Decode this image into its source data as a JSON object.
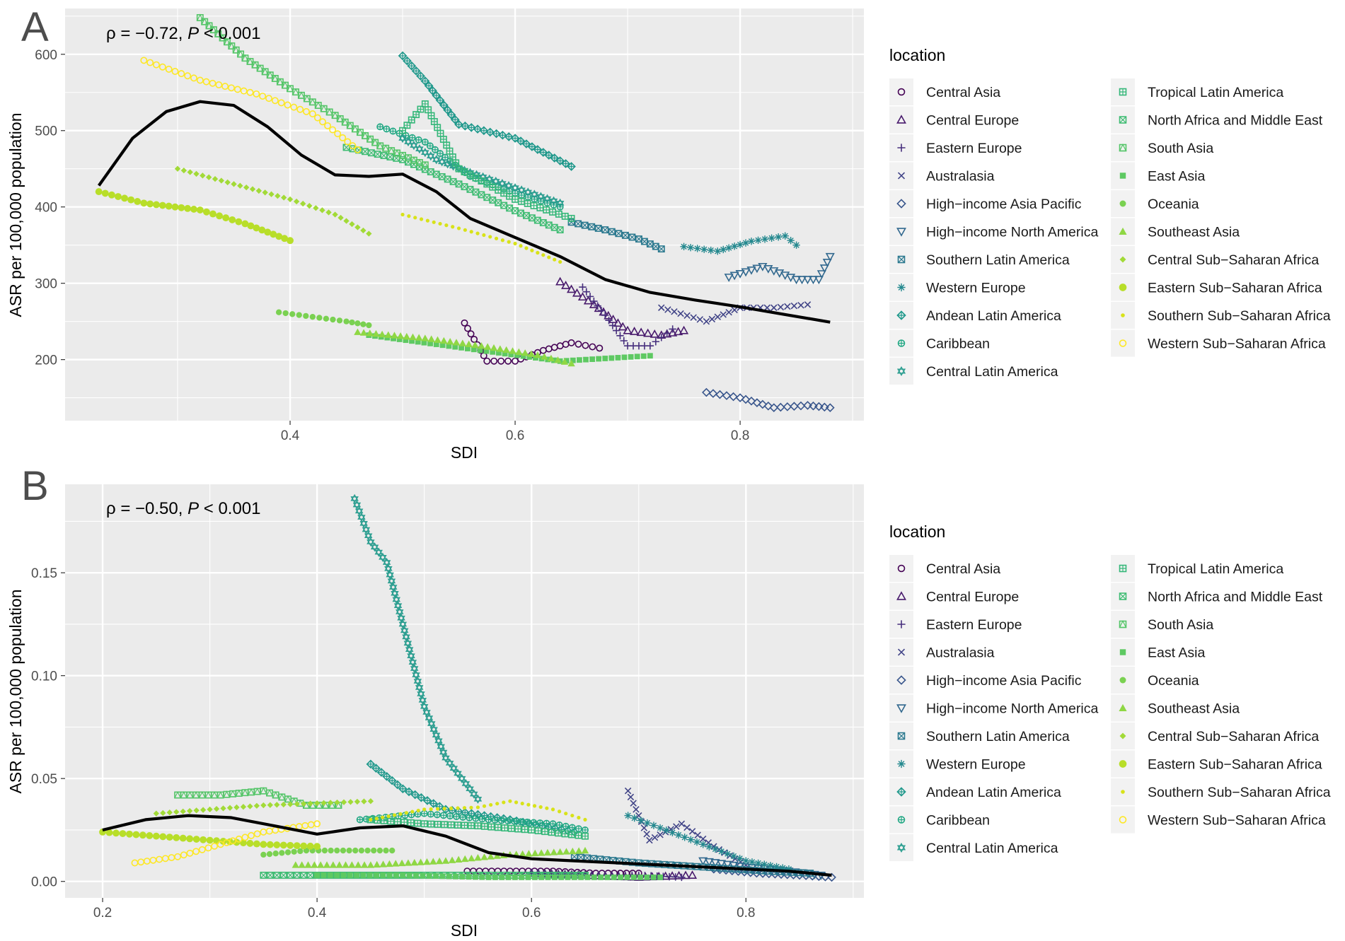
{
  "colors": {
    "panel_background": "#ebebeb",
    "grid": "#ffffff",
    "fit_line": "#000000",
    "series": [
      "#440154",
      "#482173",
      "#433e85",
      "#38598c",
      "#2d708e",
      "#25858e",
      "#1e9b8a",
      "#2ab07f",
      "#51c56a",
      "#86d549",
      "#c2df23",
      "#fde725",
      "#26828e",
      "#1f9e89",
      "#35b779",
      "#6ece58",
      "#b5de2b",
      "#e5e419",
      "#fde725"
    ]
  },
  "legend": {
    "title": "location",
    "columns": [
      [
        {
          "label": "Central Asia",
          "shape": "circle-open",
          "color": "#440154"
        },
        {
          "label": "Central Europe",
          "shape": "triangle-open",
          "color": "#481a6c"
        },
        {
          "label": "Eastern Europe",
          "shape": "plus",
          "color": "#472f7d"
        },
        {
          "label": "Australasia",
          "shape": "cross",
          "color": "#414487"
        },
        {
          "label": "High−income Asia Pacific",
          "shape": "diamond-open",
          "color": "#39568c"
        },
        {
          "label": "High−income North America",
          "shape": "triangle-down-open",
          "color": "#31688e"
        },
        {
          "label": "Southern Latin America",
          "shape": "square-cross",
          "color": "#2a788e"
        },
        {
          "label": "Western Europe",
          "shape": "asterisk",
          "color": "#23888e"
        },
        {
          "label": "Andean Latin America",
          "shape": "diamond-plus",
          "color": "#1f988b"
        },
        {
          "label": "Caribbean",
          "shape": "circle-plus",
          "color": "#22a884"
        },
        {
          "label": "Central Latin America",
          "shape": "star-of-david",
          "color": "#2a9d8f"
        }
      ],
      [
        {
          "label": "Tropical Latin America",
          "shape": "square-plus",
          "color": "#35b779"
        },
        {
          "label": "North Africa and Middle East",
          "shape": "square-x",
          "color": "#3fbc73"
        },
        {
          "label": "South Asia",
          "shape": "square-triangle",
          "color": "#54c568"
        },
        {
          "label": "East Asia",
          "shape": "square",
          "color": "#5ec962"
        },
        {
          "label": "Oceania",
          "shape": "circle",
          "color": "#7ad151"
        },
        {
          "label": "Southeast Asia",
          "shape": "triangle",
          "color": "#8fd744"
        },
        {
          "label": "Central Sub−Saharan Africa",
          "shape": "diamond",
          "color": "#a2da37"
        },
        {
          "label": "Eastern Sub−Saharan Africa",
          "shape": "big-circle",
          "color": "#b8de29"
        },
        {
          "label": "Southern Sub−Saharan Africa",
          "shape": "small-circle",
          "color": "#d8e219"
        },
        {
          "label": "Western Sub−Saharan Africa",
          "shape": "circle-open",
          "color": "#fde725"
        }
      ]
    ]
  },
  "chart_data": [
    {
      "type": "scatter",
      "panel_label": "A",
      "annotation": {
        "rho_text": "ρ = −0.72, ",
        "p_symbol": "P",
        "p_text": " < 0.001"
      },
      "xlabel": "SDI",
      "ylabel": "ASR per 100,000 population",
      "xlim": [
        0.2,
        0.91
      ],
      "ylim": [
        120,
        660
      ],
      "xticks": [
        0.4,
        0.6,
        0.8
      ],
      "xtick_labels": [
        "0.4",
        "0.6",
        "0.8"
      ],
      "yticks": [
        200,
        300,
        400,
        500,
        600
      ],
      "ytick_labels": [
        "200",
        "300",
        "400",
        "500",
        "600"
      ],
      "fit_line": {
        "x": [
          0.23,
          0.26,
          0.29,
          0.32,
          0.35,
          0.38,
          0.41,
          0.44,
          0.47,
          0.5,
          0.53,
          0.56,
          0.6,
          0.64,
          0.68,
          0.72,
          0.76,
          0.8,
          0.84,
          0.88
        ],
        "y": [
          428,
          490,
          525,
          538,
          533,
          505,
          468,
          442,
          440,
          443,
          420,
          385,
          360,
          335,
          305,
          288,
          278,
          269,
          259,
          249
        ]
      },
      "series": [
        {
          "name": "Central Asia",
          "x": [
            0.555,
            0.575,
            0.6,
            0.625,
            0.65,
            0.675
          ],
          "y": [
            248,
            198,
            198,
            212,
            222,
            215
          ]
        },
        {
          "name": "Central Europe",
          "x": [
            0.64,
            0.67,
            0.7,
            0.73,
            0.75
          ],
          "y": [
            302,
            272,
            238,
            232,
            238
          ]
        },
        {
          "name": "Eastern Europe",
          "x": [
            0.66,
            0.68,
            0.7,
            0.72,
            0.74
          ],
          "y": [
            295,
            258,
            218,
            218,
            240
          ]
        },
        {
          "name": "Australasia",
          "x": [
            0.73,
            0.77,
            0.8,
            0.83,
            0.86
          ],
          "y": [
            268,
            250,
            268,
            268,
            272
          ]
        },
        {
          "name": "High−income Asia Pacific",
          "x": [
            0.77,
            0.8,
            0.83,
            0.86,
            0.88
          ],
          "y": [
            157,
            150,
            137,
            140,
            137
          ]
        },
        {
          "name": "High−income North America",
          "x": [
            0.79,
            0.82,
            0.85,
            0.87,
            0.88
          ],
          "y": [
            308,
            322,
            305,
            305,
            335
          ]
        },
        {
          "name": "Southern Latin America",
          "x": [
            0.65,
            0.68,
            0.71,
            0.73
          ],
          "y": [
            380,
            370,
            358,
            345
          ]
        },
        {
          "name": "Western Europe",
          "x": [
            0.75,
            0.78,
            0.81,
            0.84,
            0.85
          ],
          "y": [
            348,
            342,
            355,
            362,
            350
          ]
        },
        {
          "name": "Andean Latin America",
          "x": [
            0.5,
            0.52,
            0.55,
            0.6,
            0.65
          ],
          "y": [
            598,
            565,
            508,
            490,
            453
          ]
        },
        {
          "name": "Caribbean",
          "x": [
            0.48,
            0.52,
            0.56,
            0.6,
            0.64
          ],
          "y": [
            505,
            485,
            440,
            418,
            400
          ]
        },
        {
          "name": "Central Latin America",
          "x": [
            0.5,
            0.53,
            0.56,
            0.6,
            0.64
          ],
          "y": [
            490,
            462,
            445,
            425,
            405
          ]
        },
        {
          "name": "Tropical Latin America",
          "x": [
            0.5,
            0.52,
            0.55,
            0.6,
            0.65
          ],
          "y": [
            500,
            535,
            450,
            410,
            385
          ]
        },
        {
          "name": "North Africa and Middle East",
          "x": [
            0.45,
            0.5,
            0.55,
            0.6,
            0.64
          ],
          "y": [
            478,
            462,
            430,
            395,
            370
          ]
        },
        {
          "name": "South Asia",
          "x": [
            0.32,
            0.36,
            0.4,
            0.44,
            0.48,
            0.52
          ],
          "y": [
            648,
            595,
            555,
            520,
            480,
            455
          ]
        },
        {
          "name": "East Asia",
          "x": [
            0.47,
            0.53,
            0.58,
            0.64,
            0.72
          ],
          "y": [
            232,
            220,
            210,
            198,
            205
          ]
        },
        {
          "name": "Oceania",
          "x": [
            0.39,
            0.42,
            0.45,
            0.47
          ],
          "y": [
            262,
            256,
            250,
            245
          ]
        },
        {
          "name": "Southeast Asia",
          "x": [
            0.46,
            0.52,
            0.57,
            0.62,
            0.65
          ],
          "y": [
            236,
            228,
            218,
            206,
            195
          ]
        },
        {
          "name": "Central Sub−Saharan Africa",
          "x": [
            0.3,
            0.35,
            0.4,
            0.44,
            0.47
          ],
          "y": [
            450,
            430,
            410,
            390,
            365
          ]
        },
        {
          "name": "Eastern Sub−Saharan Africa",
          "x": [
            0.23,
            0.27,
            0.32,
            0.36,
            0.4
          ],
          "y": [
            420,
            405,
            396,
            378,
            356
          ]
        },
        {
          "name": "Southern Sub−Saharan Africa",
          "x": [
            0.5,
            0.55,
            0.6,
            0.64
          ],
          "y": [
            390,
            372,
            352,
            328
          ]
        },
        {
          "name": "Western Sub−Saharan Africa",
          "x": [
            0.27,
            0.32,
            0.37,
            0.42,
            0.46
          ],
          "y": [
            592,
            566,
            548,
            522,
            475
          ]
        }
      ]
    },
    {
      "type": "scatter",
      "panel_label": "B",
      "annotation": {
        "rho_text": "ρ = −0.50, ",
        "p_symbol": "P",
        "p_text": " < 0.001"
      },
      "xlabel": "SDI",
      "ylabel": "ASR per 100,000 population",
      "xlim": [
        0.165,
        0.91
      ],
      "ylim": [
        -0.008,
        0.193
      ],
      "xticks": [
        0.2,
        0.4,
        0.6,
        0.8
      ],
      "xtick_labels": [
        "0.2",
        "0.4",
        "0.6",
        "0.8"
      ],
      "yticks": [
        0.0,
        0.05,
        0.1,
        0.15
      ],
      "ytick_labels": [
        "0.00",
        "0.05",
        "0.10",
        "0.15"
      ],
      "fit_line": {
        "x": [
          0.2,
          0.24,
          0.28,
          0.32,
          0.36,
          0.4,
          0.44,
          0.48,
          0.52,
          0.56,
          0.6,
          0.64,
          0.68,
          0.72,
          0.76,
          0.8,
          0.84,
          0.88
        ],
        "y": [
          0.025,
          0.03,
          0.032,
          0.031,
          0.027,
          0.023,
          0.026,
          0.027,
          0.022,
          0.014,
          0.011,
          0.01,
          0.009,
          0.008,
          0.007,
          0.006,
          0.005,
          0.003
        ]
      },
      "series": [
        {
          "name": "Central Asia",
          "x": [
            0.54,
            0.58,
            0.62,
            0.66,
            0.7
          ],
          "y": [
            0.005,
            0.005,
            0.005,
            0.004,
            0.004
          ]
        },
        {
          "name": "Central Europe",
          "x": [
            0.6,
            0.65,
            0.7,
            0.75
          ],
          "y": [
            0.004,
            0.003,
            0.002,
            0.003
          ]
        },
        {
          "name": "Eastern Europe",
          "x": [
            0.6,
            0.65,
            0.7,
            0.74
          ],
          "y": [
            0.004,
            0.003,
            0.003,
            0.002
          ]
        },
        {
          "name": "Australasia",
          "x": [
            0.69,
            0.71,
            0.74,
            0.77,
            0.8
          ],
          "y": [
            0.044,
            0.02,
            0.028,
            0.017,
            0.008
          ]
        },
        {
          "name": "High−income Asia Pacific",
          "x": [
            0.77,
            0.81,
            0.85,
            0.88
          ],
          "y": [
            0.006,
            0.004,
            0.003,
            0.002
          ]
        },
        {
          "name": "High−income North America",
          "x": [
            0.76,
            0.8,
            0.84,
            0.87
          ],
          "y": [
            0.01,
            0.007,
            0.005,
            0.003
          ]
        },
        {
          "name": "Southern Latin America",
          "x": [
            0.64,
            0.7,
            0.76,
            0.82,
            0.86
          ],
          "y": [
            0.012,
            0.009,
            0.007,
            0.005,
            0.004
          ]
        },
        {
          "name": "Western Europe",
          "x": [
            0.69,
            0.72,
            0.76,
            0.8,
            0.84
          ],
          "y": [
            0.032,
            0.026,
            0.018,
            0.01,
            0.006
          ]
        },
        {
          "name": "Andean Latin America",
          "x": [
            0.45,
            0.48,
            0.52,
            0.58,
            0.64
          ],
          "y": [
            0.057,
            0.045,
            0.035,
            0.03,
            0.024
          ]
        },
        {
          "name": "Caribbean",
          "x": [
            0.44,
            0.5,
            0.56,
            0.62,
            0.65
          ],
          "y": [
            0.03,
            0.033,
            0.03,
            0.028,
            0.025
          ]
        },
        {
          "name": "Central Latin America",
          "x": [
            0.435,
            0.45,
            0.465,
            0.48,
            0.5,
            0.52,
            0.55
          ],
          "y": [
            0.186,
            0.165,
            0.155,
            0.125,
            0.085,
            0.06,
            0.04
          ]
        },
        {
          "name": "Tropical Latin America",
          "x": [
            0.45,
            0.5,
            0.55,
            0.6,
            0.65
          ],
          "y": [
            0.03,
            0.028,
            0.027,
            0.025,
            0.022
          ]
        },
        {
          "name": "North Africa and Middle East",
          "x": [
            0.35,
            0.4,
            0.45,
            0.5,
            0.55,
            0.6,
            0.65
          ],
          "y": [
            0.003,
            0.003,
            0.003,
            0.003,
            0.003,
            0.003,
            0.003
          ]
        },
        {
          "name": "South Asia",
          "x": [
            0.27,
            0.31,
            0.35,
            0.39,
            0.42
          ],
          "y": [
            0.042,
            0.042,
            0.044,
            0.037,
            0.037
          ]
        },
        {
          "name": "East Asia",
          "x": [
            0.4,
            0.48,
            0.56,
            0.64,
            0.72
          ],
          "y": [
            0.003,
            0.003,
            0.002,
            0.002,
            0.002
          ]
        },
        {
          "name": "Oceania",
          "x": [
            0.35,
            0.39,
            0.43,
            0.47
          ],
          "y": [
            0.013,
            0.015,
            0.015,
            0.015
          ]
        },
        {
          "name": "Southeast Asia",
          "x": [
            0.38,
            0.45,
            0.52,
            0.58,
            0.65
          ],
          "y": [
            0.008,
            0.008,
            0.01,
            0.013,
            0.015
          ]
        },
        {
          "name": "Central Sub−Saharan Africa",
          "x": [
            0.25,
            0.3,
            0.35,
            0.4,
            0.45
          ],
          "y": [
            0.033,
            0.035,
            0.037,
            0.038,
            0.039
          ]
        },
        {
          "name": "Eastern Sub−Saharan Africa",
          "x": [
            0.2,
            0.25,
            0.3,
            0.35,
            0.4
          ],
          "y": [
            0.024,
            0.022,
            0.02,
            0.018,
            0.017
          ]
        },
        {
          "name": "Southern Sub−Saharan Africa",
          "x": [
            0.45,
            0.5,
            0.55,
            0.58,
            0.62,
            0.65
          ],
          "y": [
            0.03,
            0.035,
            0.036,
            0.039,
            0.035,
            0.03
          ]
        },
        {
          "name": "Western Sub−Saharan Africa",
          "x": [
            0.23,
            0.27,
            0.31,
            0.35,
            0.4
          ],
          "y": [
            0.009,
            0.012,
            0.018,
            0.024,
            0.028
          ]
        }
      ]
    }
  ]
}
